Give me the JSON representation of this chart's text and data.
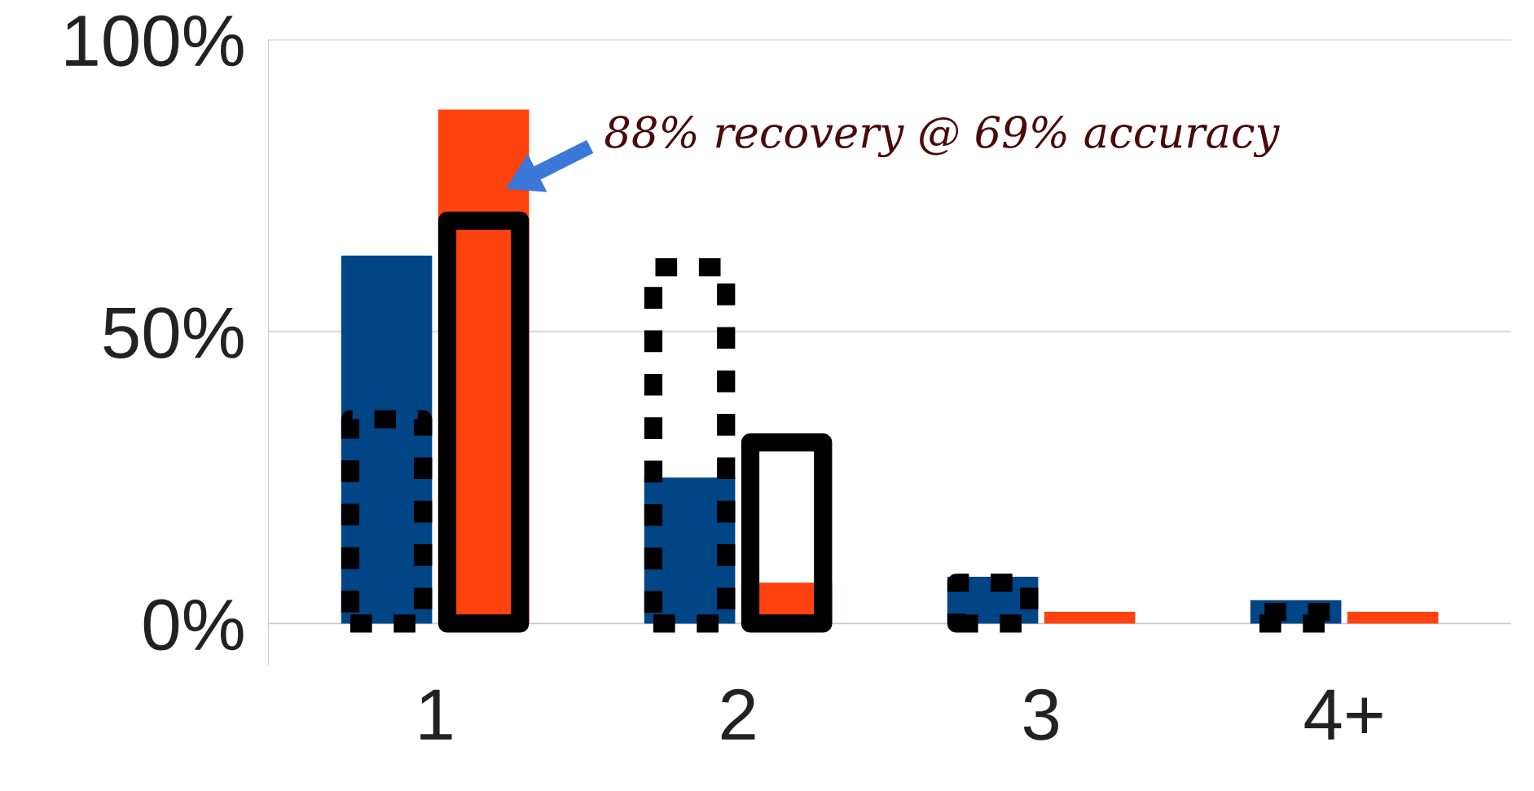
{
  "chart_data": {
    "type": "bar",
    "categories": [
      "1",
      "2",
      "3",
      "4+"
    ],
    "series": [
      {
        "color": "#004586",
        "values": [
          63,
          25,
          8,
          4
        ]
      },
      {
        "color": "#ff420e",
        "values": [
          88,
          7,
          2,
          2
        ]
      },
      {
        "color": "#000000",
        "values": [
          35,
          61,
          7,
          2
        ],
        "line_style": "dashed"
      },
      {
        "color": "#000000",
        "values": [
          69,
          31,
          null,
          null
        ],
        "line_style": "solid"
      }
    ],
    "ylim": [
      -7,
      100
    ],
    "yticks": [
      {
        "value": 0,
        "label": "0%"
      },
      {
        "value": 50,
        "label": "50%"
      },
      {
        "value": 100,
        "label": "100%"
      }
    ],
    "grid": "y",
    "annotations": [
      "88% recovery @ 69% accuracy"
    ]
  }
}
